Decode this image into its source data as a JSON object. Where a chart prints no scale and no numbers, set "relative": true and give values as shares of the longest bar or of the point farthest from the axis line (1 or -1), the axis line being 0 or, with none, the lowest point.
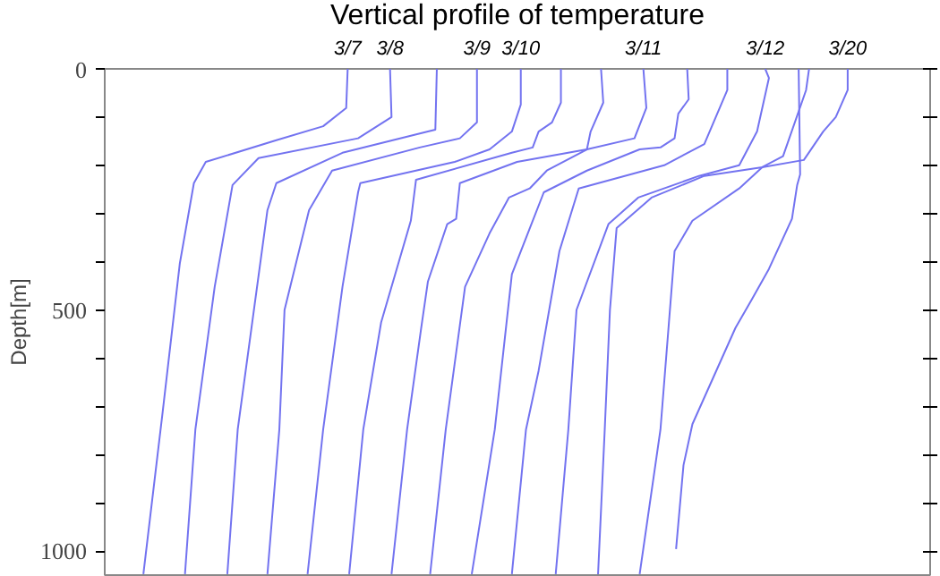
{
  "chart_data": {
    "type": "line",
    "title": "Vertical profile of temperature",
    "ylabel": "Depth[m]",
    "orientation": "horizontal",
    "relative": true,
    "grid": false,
    "marker": "none",
    "line_style": "solid",
    "tick_labels": "y",
    "ylim": [
      1050,
      0
    ],
    "yticks": [
      0,
      {
        "value": 100,
        "label": null
      },
      {
        "value": 200,
        "label": null
      },
      {
        "value": 300,
        "label": null
      },
      {
        "value": 400,
        "label": null
      },
      500,
      {
        "value": 600,
        "label": null
      },
      {
        "value": 700,
        "label": null
      },
      {
        "value": 800,
        "label": null
      },
      {
        "value": 900,
        "label": null
      },
      1000
    ],
    "series": [
      {
        "name": "3/7",
        "color": "#7373f0",
        "x": [
          0,
          81,
          119,
          148,
          193,
          237,
          404,
          711,
          1048
        ],
        "values": [
          0.327,
          0.325,
          0.294,
          0.231,
          0.136,
          0.12,
          0.101,
          0.078,
          0.052
        ]
      },
      {
        "name": "3/8",
        "color": "#7373f0",
        "x": [
          0,
          100,
          144,
          185,
          241,
          452,
          748,
          1048
        ],
        "values": [
          0.384,
          0.386,
          0.341,
          0.207,
          0.172,
          0.148,
          0.122,
          0.108
        ]
      },
      {
        "color": "#7373f0",
        "x": [
          0,
          126,
          130,
          174,
          237,
          293,
          748,
          1048
        ],
        "values": [
          0.447,
          0.445,
          0.435,
          0.32,
          0.231,
          0.219,
          0.179,
          0.165
        ]
      },
      {
        "name": "3/9",
        "color": "#7373f0",
        "x": [
          0,
          111,
          144,
          163,
          211,
          293,
          500,
          748,
          1048
        ],
        "values": [
          0.501,
          0.501,
          0.478,
          0.424,
          0.306,
          0.275,
          0.242,
          0.235,
          0.219
        ]
      },
      {
        "name": "3/10",
        "color": "#7373f0",
        "x": [
          0,
          74,
          130,
          167,
          193,
          237,
          256,
          452,
          748,
          1048
        ],
        "values": [
          0.56,
          0.56,
          0.548,
          0.518,
          0.471,
          0.344,
          0.341,
          0.32,
          0.294,
          0.273
        ]
      },
      {
        "color": "#7373f0",
        "x": [
          0,
          70,
          111,
          130,
          163,
          174,
          230,
          315,
          526,
          748,
          1048
        ],
        "values": [
          0.614,
          0.614,
          0.602,
          0.584,
          0.576,
          0.548,
          0.419,
          0.412,
          0.372,
          0.348,
          0.329
        ]
      },
      {
        "color": "#7373f0",
        "x": [
          0,
          70,
          130,
          167,
          193,
          237,
          311,
          322,
          441,
          537,
          748,
          1048
        ],
        "values": [
          0.668,
          0.671,
          0.654,
          0.649,
          0.555,
          0.478,
          0.473,
          0.461,
          0.435,
          0.426,
          0.407,
          0.386
        ]
      },
      {
        "name": "3/11",
        "color": "#7373f0",
        "x": [
          0,
          81,
          144,
          167,
          211,
          248,
          267,
          341,
          452,
          748,
          1048
        ],
        "values": [
          0.725,
          0.729,
          0.713,
          0.649,
          0.595,
          0.572,
          0.544,
          0.518,
          0.485,
          0.459,
          0.438
        ]
      },
      {
        "color": "#7373f0",
        "x": [
          0,
          63,
          93,
          144,
          163,
          167,
          211,
          256,
          426,
          748,
          1048
        ],
        "values": [
          0.784,
          0.786,
          0.772,
          0.767,
          0.748,
          0.72,
          0.649,
          0.591,
          0.548,
          0.525,
          0.494
        ]
      },
      {
        "color": "#7373f0",
        "x": [
          0,
          44,
          156,
          200,
          248,
          378,
          626,
          748,
          1048
        ],
        "values": [
          0.838,
          0.838,
          0.807,
          0.753,
          0.638,
          0.612,
          0.584,
          0.567,
          0.548
        ]
      },
      {
        "name": "3/12",
        "color": "#7373f0",
        "x": [
          0,
          19,
          130,
          200,
          222,
          267,
          322,
          500,
          748,
          1048
        ],
        "values": [
          0.889,
          0.894,
          0.878,
          0.854,
          0.8,
          0.718,
          0.678,
          0.635,
          0.624,
          0.607
        ]
      },
      {
        "color": "#7373f0",
        "x": [
          0,
          219,
          241,
          311,
          415,
          478,
          537,
          737,
          822,
          996
        ],
        "values": [
          0.934,
          0.936,
          0.932,
          0.925,
          0.894,
          0.871,
          0.849,
          0.791,
          0.779,
          0.769
        ]
      },
      {
        "color": "#7373f0",
        "x": [
          0,
          44,
          181,
          204,
          248,
          315,
          378,
          748,
          1048
        ],
        "values": [
          0.948,
          0.944,
          0.913,
          0.885,
          0.854,
          0.791,
          0.767,
          0.748,
          0.72
        ]
      },
      {
        "name": "3/20",
        "color": "#7373f0",
        "x": [
          0,
          44,
          100,
          130,
          189,
          204,
          222,
          267,
          330,
          500,
          748,
          1048
        ],
        "values": [
          1,
          1,
          0.984,
          0.967,
          0.941,
          0.885,
          0.807,
          0.736,
          0.689,
          0.68,
          0.673,
          0.664
        ]
      }
    ]
  }
}
